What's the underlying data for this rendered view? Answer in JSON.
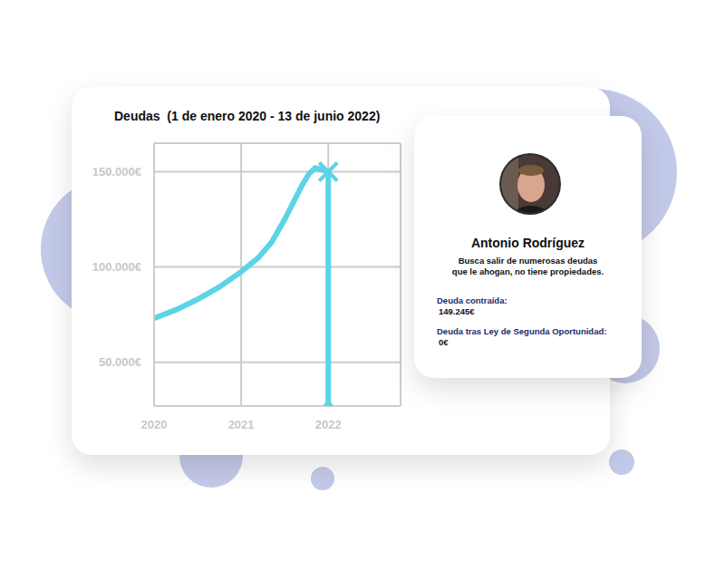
{
  "chart_data": {
    "type": "line",
    "title": "Deudas  (1 de enero 2020 - 13 de junio 2022)",
    "x": [
      2020,
      2020.25,
      2020.5,
      2020.75,
      2021,
      2021.2,
      2021.35,
      2021.5,
      2021.6,
      2021.7,
      2021.78,
      2021.85,
      2021.93,
      2022,
      2022
    ],
    "values": [
      73000,
      77500,
      83000,
      89500,
      97500,
      105000,
      113000,
      125000,
      134000,
      143000,
      149000,
      152000,
      151000,
      150000,
      27000
    ],
    "color": "#5ad4e6",
    "xlim": [
      2020,
      2022.83
    ],
    "xticks": [
      2020,
      2021,
      2022
    ],
    "ylim": [
      27000,
      165000
    ],
    "yticks": [
      {
        "value": 50000,
        "label": "50.000€"
      },
      {
        "value": 100000,
        "label": "100.000€"
      },
      {
        "value": 150000,
        "label": "150.000€"
      }
    ],
    "grid": true
  },
  "card": {
    "name": "Antonio Rodríguez",
    "description": [
      "Busca salir de numerosas deudas",
      "que le ahogan, no tiene propiedades."
    ],
    "fields": [
      {
        "label": "Deuda contraída:",
        "value": "149.245€"
      },
      {
        "label": "Deuda tras Ley de Segunda Oportunidad:",
        "value": "0€"
      }
    ]
  }
}
